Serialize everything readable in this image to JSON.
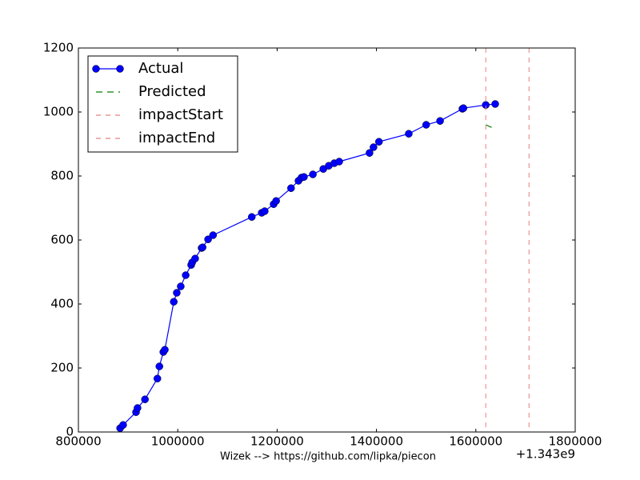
{
  "chart_data": {
    "type": "line",
    "x_offset_label": "+1.343e9",
    "footer": "Wizek --> https://github.com/lipka/piecon",
    "xlim": [
      800000,
      1800000
    ],
    "xticks": [
      800000,
      1000000,
      1200000,
      1400000,
      1600000,
      1800000
    ],
    "ylim": [
      0,
      1200
    ],
    "yticks": [
      0,
      200,
      400,
      600,
      800,
      1000,
      1200
    ],
    "legend": "upper left",
    "series": [
      {
        "name": "Actual",
        "color": "#0000ff",
        "marker": "o",
        "style": "solid",
        "x": [
          884000,
          890000,
          916000,
          919000,
          934000,
          959000,
          963000,
          971000,
          974000,
          992000,
          998000,
          1006000,
          1016000,
          1027000,
          1029000,
          1035000,
          1048000,
          1050000,
          1061000,
          1071000,
          1149000,
          1169000,
          1175000,
          1193000,
          1198000,
          1228000,
          1243000,
          1249000,
          1254000,
          1272000,
          1293000,
          1304000,
          1315000,
          1325000,
          1386000,
          1394000,
          1405000,
          1465000,
          1500000,
          1528000,
          1573000,
          1575000,
          1620000,
          1639000
        ],
        "values": [
          12,
          22,
          62,
          75,
          102,
          167,
          205,
          250,
          257,
          407,
          435,
          455,
          490,
          522,
          530,
          542,
          575,
          577,
          602,
          615,
          672,
          685,
          690,
          712,
          722,
          762,
          785,
          795,
          797,
          805,
          822,
          832,
          840,
          845,
          872,
          890,
          907,
          932,
          960,
          972,
          1010,
          1012,
          1022,
          1025
        ]
      },
      {
        "name": "Predicted",
        "color": "#008000",
        "style": "dashed",
        "x": [
          1620000,
          1634000
        ],
        "values": [
          960,
          950
        ]
      },
      {
        "name": "impactStart",
        "color": "#e88080",
        "style": "vline",
        "x": [
          1620000
        ]
      },
      {
        "name": "impactEnd",
        "color": "#e88080",
        "style": "vline",
        "x": [
          1707000
        ]
      }
    ]
  }
}
